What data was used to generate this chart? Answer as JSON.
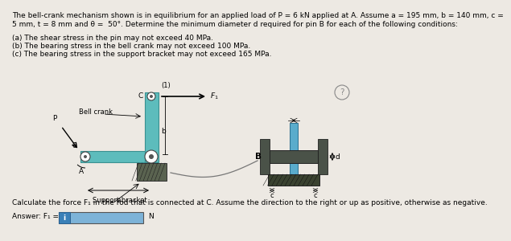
{
  "background_color": "#ede9e3",
  "title_line1": "The bell-crank mechanism shown is in equilibrium for an applied load of P = 6 kN applied at A. Assume a = 195 mm, b = 140 mm, c =",
  "title_line2": "5 mm, t = 8 mm and θ =  50°. Determine the minimum diameter d required for pin B for each of the following conditions:",
  "cond_a": "(a) The shear stress in the pin may not exceed 40 MPa.",
  "cond_b": "(b) The bearing stress in the bell crank may not exceed 100 MPa.",
  "cond_c": "(c) The bearing stress in the support bracket may not exceed 165 MPa.",
  "question_text": "Calculate the force F₁ in the rod that is connected at C. Assume the direction to the right or up as positive, otherwise as negative.",
  "answer_label": "Answer: F₁ =",
  "answer_unit": "N",
  "fs": 6.5,
  "bell_crank_color": "#5dbcbc",
  "bell_crank_edge": "#3a9090",
  "support_dark": "#5a6350",
  "support_darker": "#3a4230",
  "bracket_gray": "#888888",
  "pin_blue": "#5aaccc",
  "pin_blue_edge": "#2a7090",
  "answer_box_color": "#7db3d8"
}
